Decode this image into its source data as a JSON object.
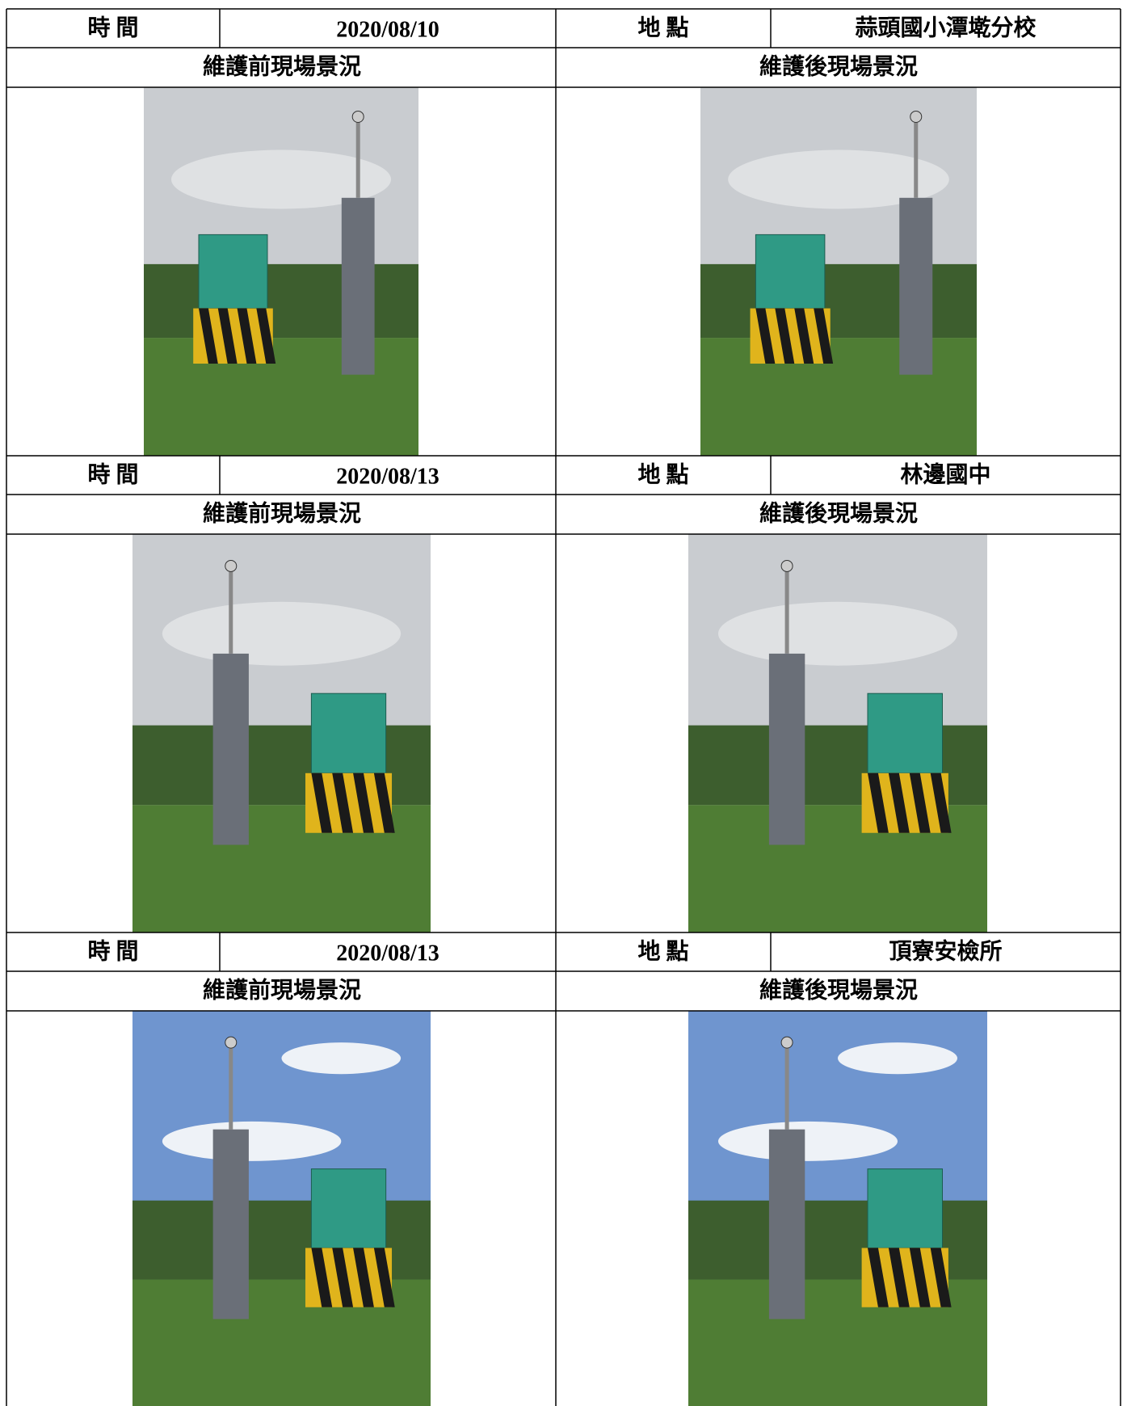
{
  "sections": [
    {
      "time_label": "時 間",
      "date": "2020/08/10",
      "location_label": "地 點",
      "location": "蒜頭國小潭墘分校",
      "before_label": "維護前現場景況",
      "after_label": "維護後現場景況"
    },
    {
      "time_label": "時 間",
      "date": "2020/08/13",
      "location_label": "地 點",
      "location": "林邊國中",
      "before_label": "維護前現場景況",
      "after_label": "維護後現場景況"
    },
    {
      "time_label": "時 間",
      "date": "2020/08/13",
      "location_label": "地 點",
      "location": "頂寮安檢所",
      "before_label": "維護前現場景況",
      "after_label": "維護後現場景況"
    }
  ]
}
